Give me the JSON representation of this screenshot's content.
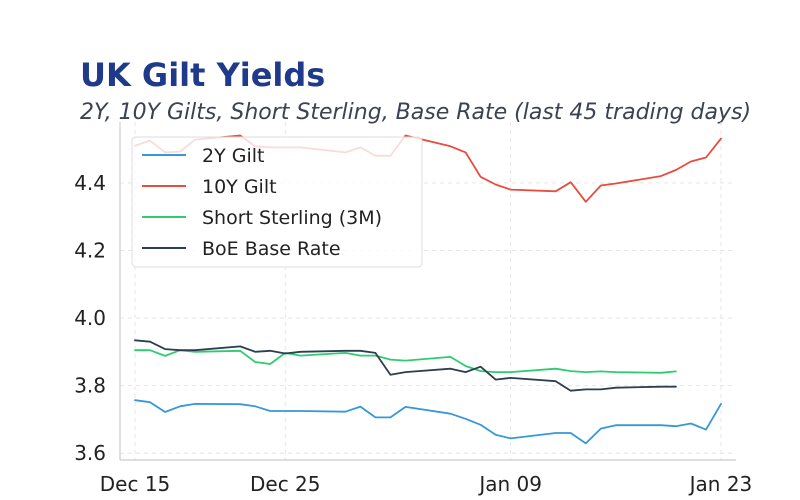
{
  "chart_data": {
    "type": "line",
    "title": "UK Gilt Yields",
    "subtitle": "2Y, 10Y Gilts, Short Sterling, Base Rate (last 45 trading days)",
    "xlabel": "",
    "ylabel": "",
    "x_ticks": [
      {
        "date": "2024-12-15",
        "label": "Dec 15"
      },
      {
        "date": "2024-12-25",
        "label": "Dec 25"
      },
      {
        "date": "2025-01-09",
        "label": "Jan 09"
      },
      {
        "date": "2025-01-23",
        "label": "Jan 23"
      }
    ],
    "xlim": [
      "2024-12-14",
      "2025-01-24"
    ],
    "ylim": [
      3.58,
      4.58
    ],
    "y_ticks": [
      3.6,
      3.8,
      4.0,
      4.2,
      4.4
    ],
    "grid": true,
    "legend_position": "upper-left",
    "colors": {
      "2y": "#3498db",
      "10y": "#e74c3c",
      "ss": "#2ecc71",
      "boe": "#2c3e50"
    },
    "series": [
      {
        "name": "2Y Gilt",
        "key": "2y",
        "x": [
          "2024-12-15",
          "2024-12-16",
          "2024-12-17",
          "2024-12-18",
          "2024-12-19",
          "2024-12-22",
          "2024-12-23",
          "2024-12-24",
          "2024-12-25",
          "2024-12-26",
          "2024-12-29",
          "2024-12-30",
          "2024-12-31",
          "2025-01-01",
          "2025-01-02",
          "2025-01-05",
          "2025-01-06",
          "2025-01-07",
          "2025-01-08",
          "2025-01-09",
          "2025-01-12",
          "2025-01-13",
          "2025-01-14",
          "2025-01-15",
          "2025-01-16",
          "2025-01-19",
          "2025-01-20",
          "2025-01-21",
          "2025-01-22",
          "2025-01-23"
        ],
        "y": [
          3.757,
          3.751,
          3.722,
          3.739,
          3.746,
          3.745,
          3.739,
          3.725,
          3.725,
          3.725,
          3.723,
          3.738,
          3.706,
          3.706,
          3.737,
          3.717,
          3.702,
          3.684,
          3.655,
          3.644,
          3.66,
          3.66,
          3.629,
          3.673,
          3.683,
          3.683,
          3.68,
          3.688,
          3.67,
          3.746
        ]
      },
      {
        "name": "10Y Gilt",
        "key": "10y",
        "x": [
          "2024-12-15",
          "2024-12-16",
          "2024-12-17",
          "2024-12-18",
          "2024-12-19",
          "2024-12-22",
          "2024-12-23",
          "2024-12-24",
          "2024-12-25",
          "2024-12-26",
          "2024-12-29",
          "2024-12-30",
          "2024-12-31",
          "2025-01-01",
          "2025-01-02",
          "2025-01-05",
          "2025-01-06",
          "2025-01-07",
          "2025-01-08",
          "2025-01-09",
          "2025-01-12",
          "2025-01-13",
          "2025-01-14",
          "2025-01-15",
          "2025-01-16",
          "2025-01-19",
          "2025-01-20",
          "2025-01-21",
          "2025-01-22",
          "2025-01-23"
        ],
        "y": [
          4.51,
          4.525,
          4.49,
          4.492,
          4.528,
          4.54,
          4.508,
          4.505,
          4.505,
          4.505,
          4.49,
          4.505,
          4.48,
          4.48,
          4.54,
          4.508,
          4.49,
          4.418,
          4.395,
          4.38,
          4.375,
          4.402,
          4.344,
          4.392,
          4.398,
          4.42,
          4.438,
          4.463,
          4.475,
          4.531
        ]
      },
      {
        "name": "Short Sterling (3M)",
        "key": "ss",
        "x": [
          "2024-12-15",
          "2024-12-16",
          "2024-12-17",
          "2024-12-18",
          "2024-12-19",
          "2024-12-22",
          "2024-12-23",
          "2024-12-24",
          "2024-12-25",
          "2024-12-26",
          "2024-12-29",
          "2024-12-30",
          "2024-12-31",
          "2025-01-01",
          "2025-01-02",
          "2025-01-05",
          "2025-01-06",
          "2025-01-07",
          "2025-01-08",
          "2025-01-09",
          "2025-01-12",
          "2025-01-13",
          "2025-01-14",
          "2025-01-15",
          "2025-01-16",
          "2025-01-19",
          "2025-01-20"
        ],
        "y": [
          3.905,
          3.905,
          3.888,
          3.905,
          3.9,
          3.903,
          3.87,
          3.864,
          3.897,
          3.889,
          3.897,
          3.889,
          3.889,
          3.877,
          3.874,
          3.885,
          3.858,
          3.843,
          3.84,
          3.84,
          3.85,
          3.843,
          3.84,
          3.842,
          3.84,
          3.838,
          3.842
        ]
      },
      {
        "name": "BoE Base Rate",
        "key": "boe",
        "x": [
          "2024-12-15",
          "2024-12-16",
          "2024-12-17",
          "2024-12-18",
          "2024-12-19",
          "2024-12-22",
          "2024-12-23",
          "2024-12-24",
          "2024-12-25",
          "2024-12-26",
          "2024-12-29",
          "2024-12-30",
          "2024-12-31",
          "2025-01-01",
          "2025-01-02",
          "2025-01-05",
          "2025-01-06",
          "2025-01-07",
          "2025-01-08",
          "2025-01-09",
          "2025-01-12",
          "2025-01-13",
          "2025-01-14",
          "2025-01-15",
          "2025-01-16",
          "2025-01-19",
          "2025-01-20"
        ],
        "y": [
          3.934,
          3.93,
          3.908,
          3.905,
          3.905,
          3.916,
          3.9,
          3.903,
          3.895,
          3.9,
          3.903,
          3.903,
          3.897,
          3.832,
          3.84,
          3.85,
          3.84,
          3.856,
          3.818,
          3.823,
          3.813,
          3.785,
          3.789,
          3.789,
          3.794,
          3.797,
          3.797
        ]
      }
    ]
  }
}
